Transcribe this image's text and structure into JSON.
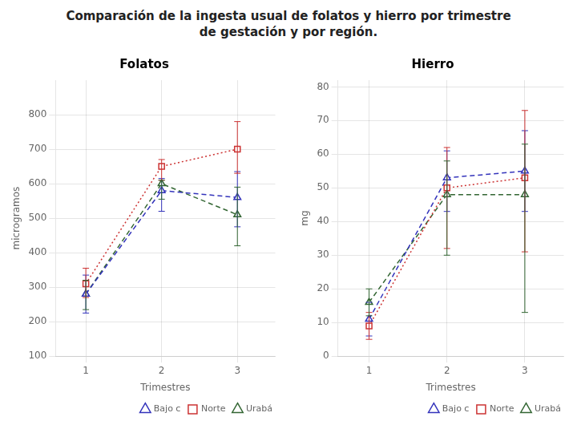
{
  "title": [
    "Comparación de la ingesta usual de folatos y hierro por trimestre",
    "de gestación y por región."
  ],
  "chart_data": [
    {
      "type": "line",
      "title": "Folatos",
      "x_label": "Trimestres",
      "y_label": "microgramos",
      "x": [
        1,
        2,
        3
      ],
      "xlim": [
        0.6,
        3.5
      ],
      "xticks": [
        1,
        2,
        3
      ],
      "ylim": [
        100,
        900
      ],
      "yticks": [
        100,
        200,
        300,
        400,
        500,
        600,
        700,
        800
      ],
      "grid": true,
      "legend": "lower right",
      "series": [
        {
          "name": "Bajo c",
          "color": "#3333bb",
          "marker": "triangle",
          "line_style": "dashed",
          "values": [
            280,
            580,
            560
          ],
          "error_low": [
            55,
            60,
            85
          ],
          "error_high": [
            55,
            35,
            75
          ]
        },
        {
          "name": "Norte",
          "color": "#cc3333",
          "marker": "square",
          "line_style": "dotted",
          "values": [
            310,
            650,
            700
          ],
          "error_low": [
            40,
            40,
            70
          ],
          "error_high": [
            45,
            20,
            80
          ]
        },
        {
          "name": "Urabá",
          "color": "#336633",
          "marker": "triangle",
          "line_style": "dashed",
          "values": [
            280,
            600,
            510
          ],
          "error_low": [
            45,
            45,
            90
          ],
          "error_high": [
            40,
            10,
            80
          ]
        }
      ]
    },
    {
      "type": "line",
      "title": "Hierro",
      "x_label": "Trimestres",
      "y_label": "mg",
      "x": [
        1,
        2,
        3
      ],
      "xlim": [
        0.6,
        3.5
      ],
      "xticks": [
        1,
        2,
        3
      ],
      "ylim": [
        0,
        82
      ],
      "yticks": [
        0,
        10,
        20,
        30,
        40,
        50,
        60,
        70,
        80
      ],
      "grid": true,
      "legend": "lower right",
      "series": [
        {
          "name": "Bajo c",
          "color": "#3333bb",
          "marker": "triangle",
          "line_style": "dashed",
          "values": [
            11,
            53,
            55
          ],
          "error_low": [
            5,
            10,
            12
          ],
          "error_high": [
            5,
            8,
            12
          ]
        },
        {
          "name": "Norte",
          "color": "#cc3333",
          "marker": "square",
          "line_style": "dotted",
          "values": [
            9,
            50,
            53
          ],
          "error_low": [
            4,
            18,
            22
          ],
          "error_high": [
            4,
            12,
            20
          ]
        },
        {
          "name": "Urabá",
          "color": "#336633",
          "marker": "triangle",
          "line_style": "dashed",
          "values": [
            16,
            48,
            48
          ],
          "error_low": [
            4,
            18,
            35
          ],
          "error_high": [
            4,
            10,
            15
          ]
        }
      ]
    }
  ]
}
